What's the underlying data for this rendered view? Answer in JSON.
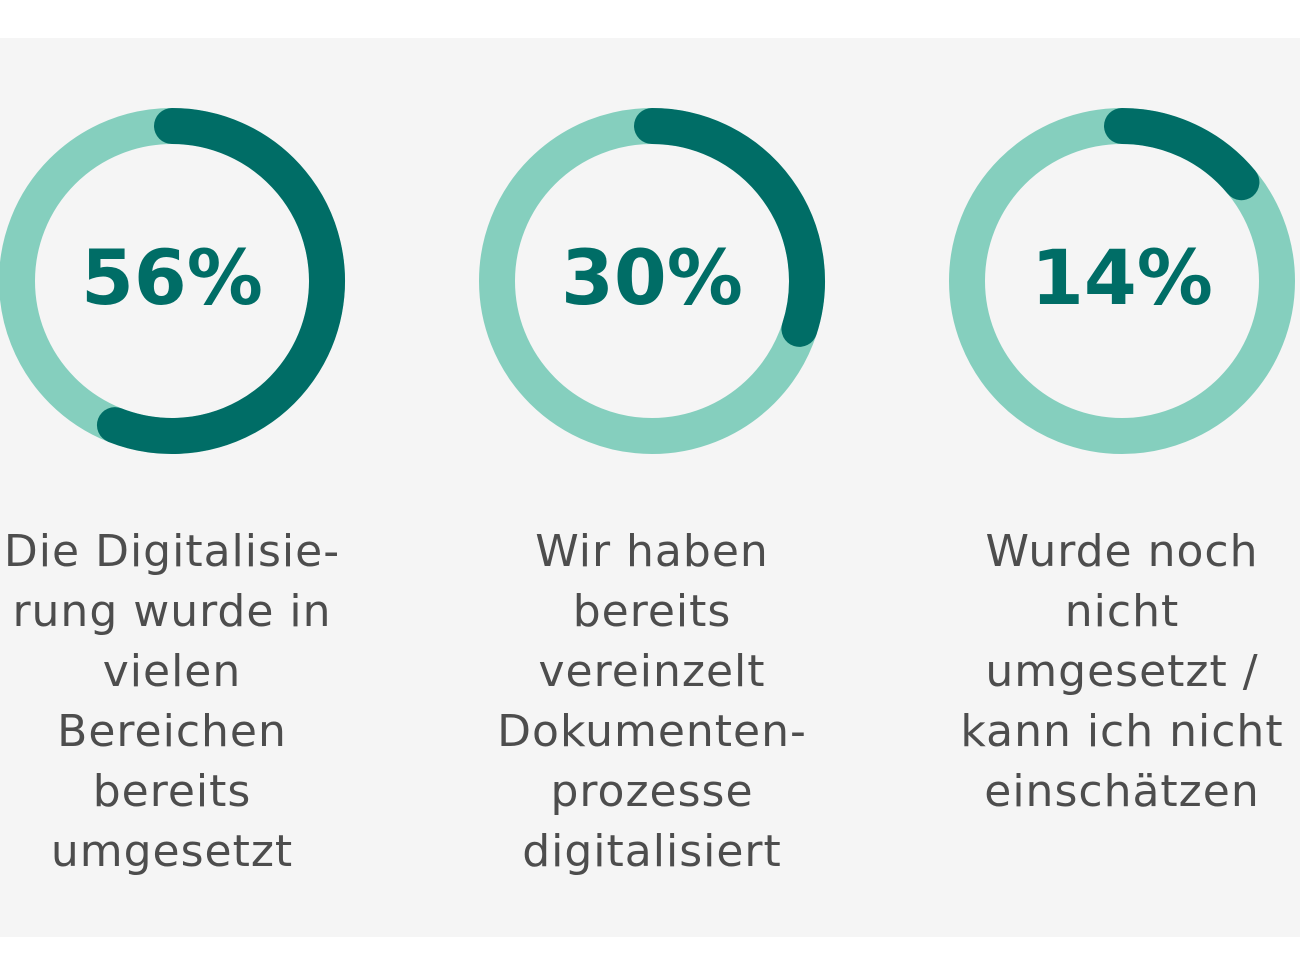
{
  "chart_data": {
    "type": "donut",
    "track_color": "#85cfbe",
    "color": "#006d66",
    "values": [
      56,
      30,
      14
    ],
    "value_labels": [
      "56%",
      "30%",
      "14%"
    ],
    "categories": [
      [
        "Die Digitalisie-",
        "rung wurde in",
        "vielen",
        "Bereichen",
        "bereits",
        "umgesetzt"
      ],
      [
        "Wir haben",
        "bereits",
        "vereinzelt",
        "Dokumenten-",
        "prozesse",
        "digitalisiert"
      ],
      [
        "Wurde noch",
        "nicht",
        "umgesetzt /",
        "kann ich nicht",
        "einschätzen"
      ]
    ]
  }
}
